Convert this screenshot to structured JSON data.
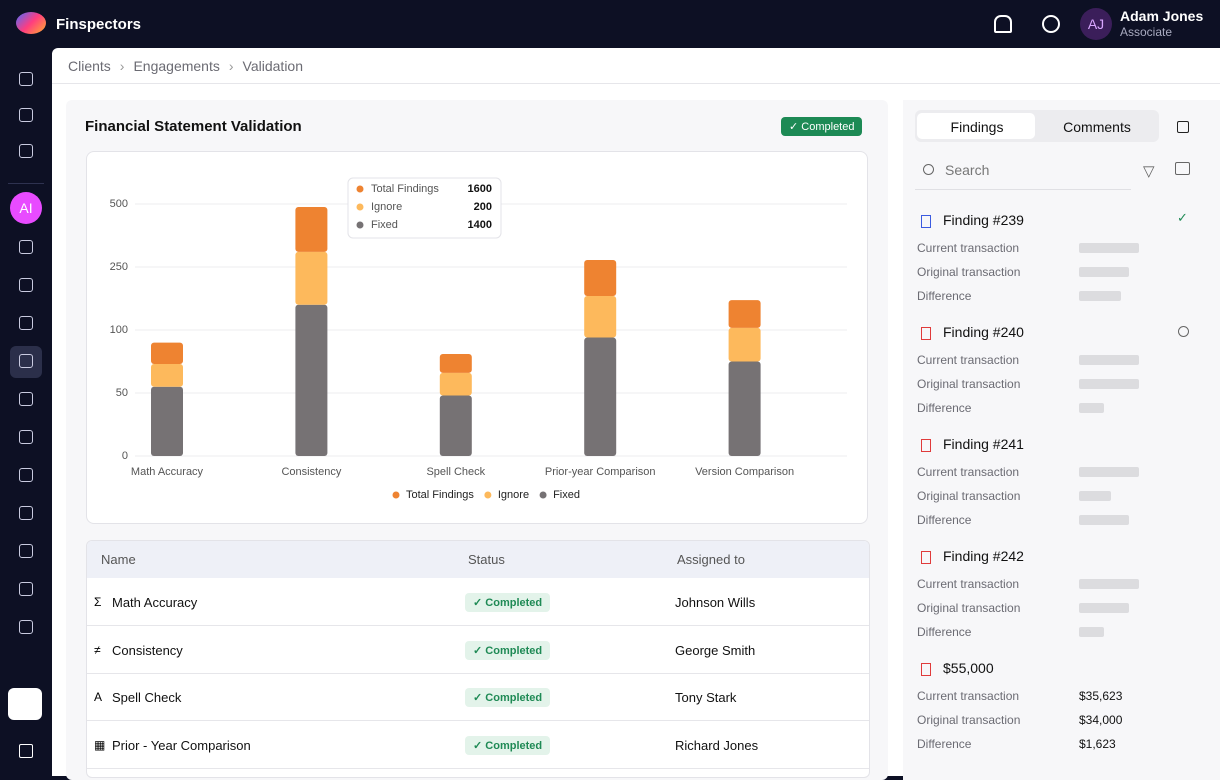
{
  "app": {
    "name": "Finspectors",
    "user_initials": "AJ",
    "user_name": "Adam Jones",
    "user_role": "Associate",
    "sidebar_badge": "AI"
  },
  "breadcrumbs": [
    "Clients",
    "Engagements",
    "Validation"
  ],
  "panel": {
    "title": "Financial Statement Validation",
    "status": "Completed"
  },
  "chart_data": {
    "type": "bar",
    "stacked": true,
    "categories": [
      "Math Accuracy",
      "Consistency",
      "Spell Check",
      "Prior-year Comparison",
      "Version Comparison"
    ],
    "series": [
      {
        "name": "Fixed",
        "color": "#767274",
        "values": [
          55,
          160,
          48,
          94,
          75
        ]
      },
      {
        "name": "Ignore",
        "color": "#fdb95c",
        "values": [
          18,
          150,
          18,
          87,
          30
        ]
      },
      {
        "name": "Total Findings",
        "color": "#ee8331",
        "values": [
          17,
          178,
          15,
          97,
          66
        ]
      }
    ],
    "ylim": [
      0,
      500
    ],
    "yticks": [
      0,
      50,
      100,
      250,
      500
    ],
    "grid": true,
    "tooltip_values": [
      1600,
      200,
      1400
    ]
  },
  "table": {
    "columns": [
      "Name",
      "Status",
      "Assigned to"
    ],
    "rows": [
      [
        "Math Accuracy",
        "Completed",
        "Johnson Wills"
      ],
      [
        "Consistency",
        "Completed",
        "George Smith"
      ],
      [
        "Spell Check",
        "Completed",
        "Tony Stark"
      ],
      [
        "Prior - Year Comparison",
        "Completed",
        "Richard Jones"
      ]
    ]
  },
  "findings_panel": {
    "tabs": [
      "Findings",
      "Comments"
    ],
    "search": "Search",
    "field_labels": [
      "Current transaction",
      "Original transaction",
      "Difference"
    ],
    "items": [
      {
        "title": "Finding #239"
      },
      {
        "title": "Finding #240"
      },
      {
        "title": "Finding #241"
      },
      {
        "title": "Finding #242"
      },
      {
        "title": "$55,000",
        "values": [
          "$35,623",
          "$34,000",
          "$1,623"
        ]
      }
    ]
  }
}
